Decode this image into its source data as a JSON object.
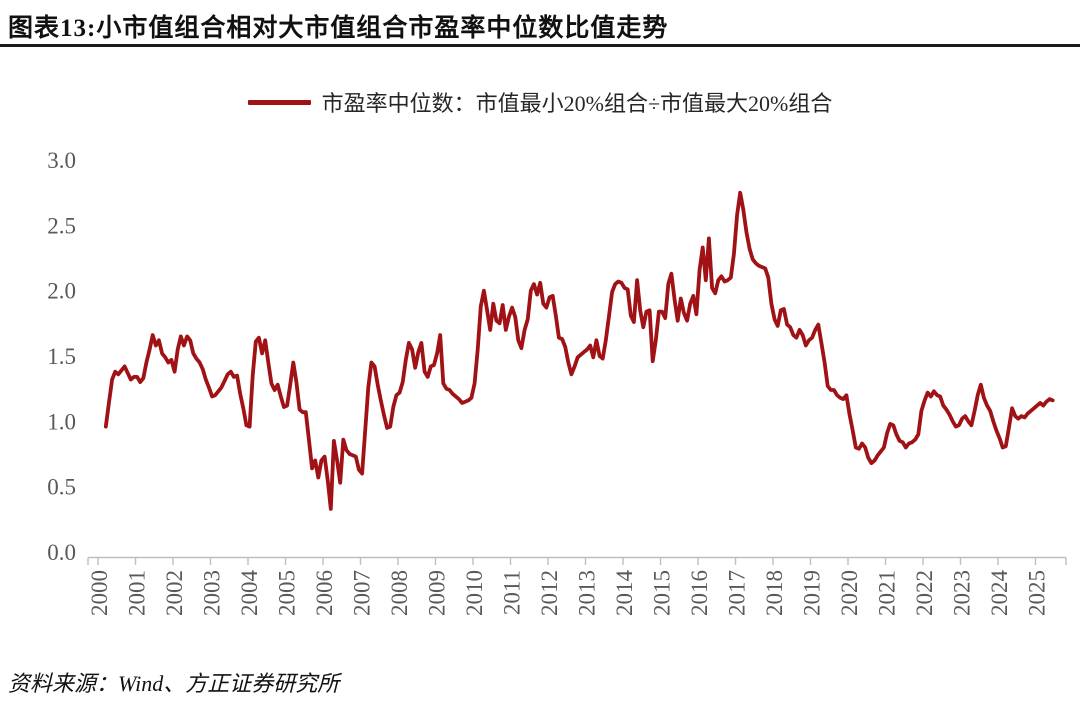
{
  "figure": {
    "title": "图表13:小市值组合相对大市值组合市盈率中位数比值走势",
    "source": "资料来源：Wind、方正证券研究所"
  },
  "legend": {
    "label": "市盈率中位数：市值最小20%组合÷市值最大20%组合"
  },
  "colors": {
    "line": "#A01215",
    "axis": "#BFBFBF",
    "tick_label": "#595959",
    "rule": "#1a1a1a"
  },
  "chart_data": {
    "type": "line",
    "title": "小市值组合相对大市值组合市盈率中位数比值走势",
    "xlabel": "",
    "ylabel": "",
    "ylim": [
      0.0,
      3.0
    ],
    "yticks": [
      "0.0",
      "0.5",
      "1.0",
      "1.5",
      "2.0",
      "2.5",
      "3.0"
    ],
    "xticks": [
      2000,
      2001,
      2002,
      2003,
      2004,
      2005,
      2006,
      2007,
      2008,
      2009,
      2010,
      2011,
      2012,
      2013,
      2014,
      2015,
      2016,
      2017,
      2018,
      2019,
      2020,
      2021,
      2022,
      2023,
      2024,
      2025
    ],
    "grid": false,
    "legend_position": "top",
    "x_frequency": "monthly",
    "x_start_year": 2000,
    "x_start_month": 3,
    "x_end_year": 2025,
    "x_end_month": 6,
    "series": [
      {
        "name": "市盈率中位数：市值最小20%组合÷市值最大20%组合",
        "color": "#A01215",
        "values": [
          0.96,
          1.14,
          1.32,
          1.38,
          1.36,
          1.39,
          1.42,
          1.37,
          1.32,
          1.34,
          1.34,
          1.3,
          1.33,
          1.45,
          1.55,
          1.66,
          1.58,
          1.62,
          1.52,
          1.49,
          1.45,
          1.47,
          1.38,
          1.55,
          1.65,
          1.58,
          1.65,
          1.62,
          1.52,
          1.48,
          1.45,
          1.4,
          1.32,
          1.26,
          1.19,
          1.2,
          1.23,
          1.26,
          1.31,
          1.36,
          1.38,
          1.34,
          1.35,
          1.21,
          1.1,
          0.97,
          0.96,
          1.35,
          1.61,
          1.64,
          1.52,
          1.62,
          1.45,
          1.29,
          1.24,
          1.28,
          1.19,
          1.11,
          1.12,
          1.28,
          1.45,
          1.3,
          1.09,
          1.07,
          1.07,
          0.86,
          0.64,
          0.7,
          0.57,
          0.7,
          0.73,
          0.55,
          0.33,
          0.85,
          0.7,
          0.53,
          0.86,
          0.78,
          0.75,
          0.74,
          0.73,
          0.63,
          0.6,
          0.93,
          1.26,
          1.45,
          1.42,
          1.28,
          1.16,
          1.05,
          0.95,
          0.96,
          1.11,
          1.2,
          1.22,
          1.3,
          1.47,
          1.6,
          1.55,
          1.41,
          1.53,
          1.6,
          1.38,
          1.34,
          1.42,
          1.43,
          1.52,
          1.66,
          1.29,
          1.25,
          1.24,
          1.21,
          1.19,
          1.17,
          1.14,
          1.15,
          1.16,
          1.18,
          1.29,
          1.55,
          1.88,
          2.0,
          1.85,
          1.7,
          1.9,
          1.77,
          1.75,
          1.89,
          1.7,
          1.8,
          1.87,
          1.8,
          1.62,
          1.56,
          1.7,
          1.78,
          2.0,
          2.05,
          1.97,
          2.06,
          1.9,
          1.87,
          1.95,
          1.96,
          1.81,
          1.64,
          1.63,
          1.57,
          1.45,
          1.36,
          1.42,
          1.49,
          1.51,
          1.53,
          1.55,
          1.58,
          1.49,
          1.62,
          1.5,
          1.48,
          1.62,
          1.8,
          1.99,
          2.05,
          2.07,
          2.06,
          2.02,
          2.01,
          1.81,
          1.76,
          2.08,
          1.85,
          1.72,
          1.84,
          1.85,
          1.46,
          1.62,
          1.84,
          1.84,
          1.79,
          2.05,
          2.13,
          1.93,
          1.77,
          1.94,
          1.83,
          1.77,
          1.9,
          1.96,
          1.82,
          2.16,
          2.33,
          2.08,
          2.4,
          2.02,
          1.98,
          2.08,
          2.11,
          2.07,
          2.08,
          2.1,
          2.28,
          2.58,
          2.75,
          2.62,
          2.45,
          2.32,
          2.24,
          2.21,
          2.19,
          2.18,
          2.17,
          2.1,
          1.9,
          1.78,
          1.73,
          1.85,
          1.86,
          1.74,
          1.72,
          1.66,
          1.64,
          1.7,
          1.66,
          1.58,
          1.62,
          1.64,
          1.7,
          1.74,
          1.6,
          1.45,
          1.27,
          1.24,
          1.24,
          1.2,
          1.18,
          1.17,
          1.2,
          1.05,
          0.93,
          0.8,
          0.79,
          0.83,
          0.8,
          0.72,
          0.68,
          0.7,
          0.74,
          0.77,
          0.8,
          0.91,
          0.98,
          0.97,
          0.9,
          0.85,
          0.84,
          0.8,
          0.83,
          0.84,
          0.86,
          0.9,
          1.08,
          1.16,
          1.22,
          1.19,
          1.23,
          1.2,
          1.19,
          1.12,
          1.09,
          1.05,
          1.0,
          0.96,
          0.97,
          1.02,
          1.04,
          1.0,
          0.97,
          1.08,
          1.2,
          1.28,
          1.18,
          1.12,
          1.08,
          1.0,
          0.93,
          0.87,
          0.8,
          0.81,
          0.95,
          1.1,
          1.04,
          1.02,
          1.04,
          1.03,
          1.06,
          1.08,
          1.1,
          1.12,
          1.14,
          1.12,
          1.15,
          1.17,
          1.16
        ]
      }
    ]
  }
}
